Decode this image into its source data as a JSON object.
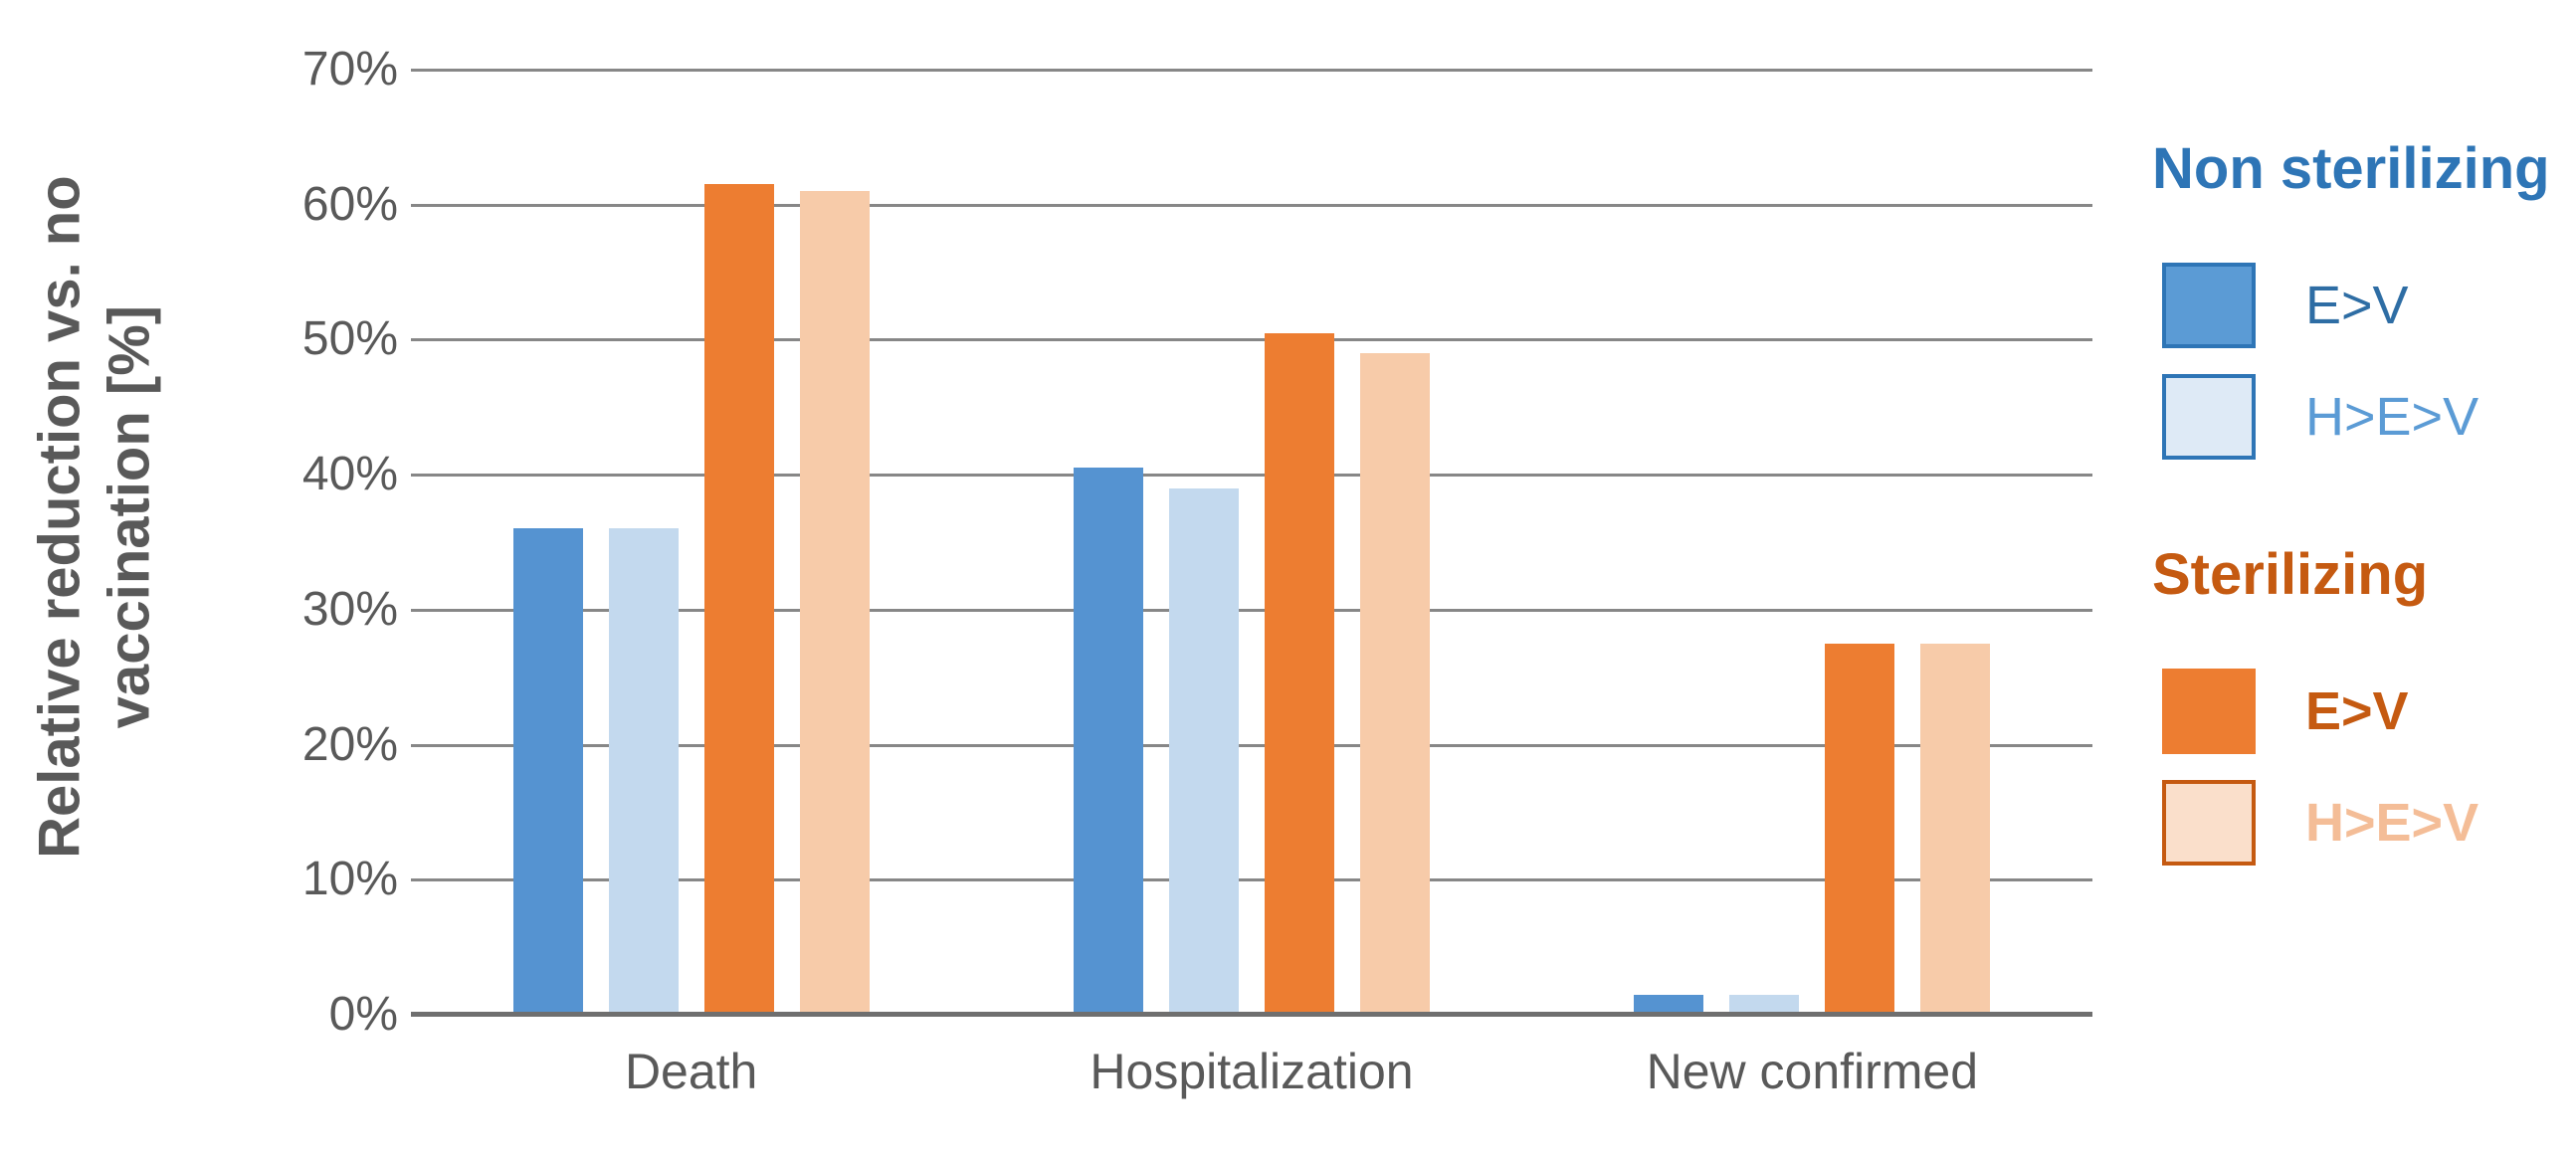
{
  "chart_data": {
    "type": "bar",
    "title": "",
    "categories": [
      "Death",
      "Hospitalization",
      "New confirmed"
    ],
    "series": [
      {
        "name": "Non sterilizing E>V",
        "legend_group": "Non sterilizing",
        "label": "E>V",
        "color": "#5593D1",
        "values": [
          36,
          40.5,
          1.5
        ]
      },
      {
        "name": "Non sterilizing H>E>V",
        "legend_group": "Non sterilizing",
        "label": "H>E>V",
        "color": "#C3D9EE",
        "values": [
          36,
          39,
          1.5
        ]
      },
      {
        "name": "Sterilizing E>V",
        "legend_group": "Sterilizing",
        "label": "E>V",
        "color": "#ED7D31",
        "values": [
          61.5,
          50.5,
          27.5
        ]
      },
      {
        "name": "Sterilizing H>E>V",
        "legend_group": "Sterilizing",
        "label": "H>E>V",
        "color": "#F7CBA9",
        "values": [
          61,
          49,
          27.5
        ]
      }
    ],
    "ylabel": "Relative reduction vs. no vaccination [%]",
    "ylabel_lines": [
      "Relative reduction vs. no",
      "vaccination [%]"
    ],
    "xlabel": "",
    "ylim": [
      0,
      70
    ],
    "ytick_step": 10,
    "yticks_top_to_bottom": [
      "70%",
      "60%",
      "50%",
      "40%",
      "30%",
      "20%",
      "10%",
      "0%"
    ],
    "grid": "horizontal",
    "legend_position": "right"
  },
  "legend": {
    "sections": [
      {
        "title": "Non sterilizing",
        "title_color": "#2E75B6",
        "items": [
          {
            "label": "E>V",
            "swatch_fill": "#5B9BD5",
            "swatch_border": "#2E75B6",
            "label_color": "#2E6DA4",
            "bold": false
          },
          {
            "label": "H>E>V",
            "swatch_fill": "#DEEAF6",
            "swatch_border": "#2E75B6",
            "label_color": "#5B9BD5",
            "bold": false
          }
        ]
      },
      {
        "title": "Sterilizing",
        "title_color": "#C55A11",
        "items": [
          {
            "label": "E>V",
            "swatch_fill": "#ED7D31",
            "swatch_border": "#ED7D31",
            "label_color": "#C55A11",
            "bold": true
          },
          {
            "label": "H>E>V",
            "swatch_fill": "#FADFCB",
            "swatch_border": "#C55A11",
            "label_color": "#F4BD97",
            "bold": true
          }
        ]
      }
    ]
  },
  "axes": {
    "text_color": "#595959",
    "grid_color": "#878787"
  }
}
